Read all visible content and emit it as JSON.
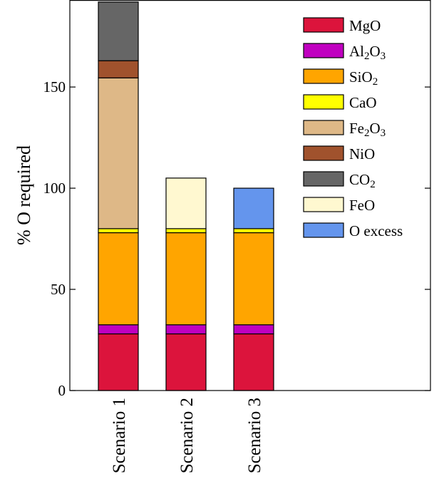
{
  "chart_data": {
    "type": "bar",
    "stacked": true,
    "categories": [
      "Scenario 1",
      "Scenario 2",
      "Scenario 3"
    ],
    "ylabel": "% O required",
    "xlabel": "",
    "ylim": [
      0,
      193
    ],
    "yticks": [
      0,
      50,
      100,
      150
    ],
    "grid": false,
    "legend_position": "top-right",
    "series": [
      {
        "name": "MgO",
        "label_parts": [
          [
            "MgO",
            false
          ]
        ],
        "color": "#dc143c",
        "values": [
          28,
          28,
          28
        ]
      },
      {
        "name": "Al2O3",
        "label_parts": [
          [
            "Al",
            false
          ],
          [
            "2",
            true
          ],
          [
            "O",
            false
          ],
          [
            "3",
            true
          ]
        ],
        "color": "#c000c0",
        "values": [
          4.5,
          4.5,
          4.5
        ]
      },
      {
        "name": "SiO2",
        "label_parts": [
          [
            "SiO",
            false
          ],
          [
            "2",
            true
          ]
        ],
        "color": "#ffa500",
        "values": [
          45.5,
          45.5,
          45.5
        ]
      },
      {
        "name": "CaO",
        "label_parts": [
          [
            "CaO",
            false
          ]
        ],
        "color": "#ffff00",
        "values": [
          2,
          2,
          2
        ]
      },
      {
        "name": "Fe2O3",
        "label_parts": [
          [
            "Fe",
            false
          ],
          [
            "2",
            true
          ],
          [
            "O",
            false
          ],
          [
            "3",
            true
          ]
        ],
        "color": "#deb887",
        "values": [
          74.5,
          0,
          0
        ]
      },
      {
        "name": "NiO",
        "label_parts": [
          [
            "NiO",
            false
          ]
        ],
        "color": "#a0522d",
        "values": [
          8.5,
          0,
          0
        ]
      },
      {
        "name": "CO2",
        "label_parts": [
          [
            "CO",
            false
          ],
          [
            "2",
            true
          ]
        ],
        "color": "#666666",
        "values": [
          29,
          0,
          0
        ]
      },
      {
        "name": "FeO",
        "label_parts": [
          [
            "FeO",
            false
          ]
        ],
        "color": "#fff8d0",
        "values": [
          0,
          25,
          0
        ]
      },
      {
        "name": "O excess",
        "label_parts": [
          [
            "O excess",
            false
          ]
        ],
        "color": "#6495ed",
        "values": [
          0,
          0,
          20
        ]
      }
    ]
  }
}
